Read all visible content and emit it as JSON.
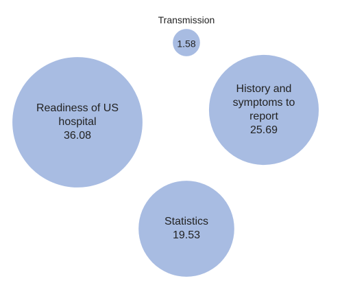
{
  "chart_data": {
    "type": "packed-bubble",
    "categories": [
      "Readiness of US hospital",
      "History and symptoms to report",
      "Statistics",
      "Transmission"
    ],
    "values": [
      36.08,
      25.69,
      19.53,
      1.58
    ],
    "color": "#a8bce2"
  }
}
